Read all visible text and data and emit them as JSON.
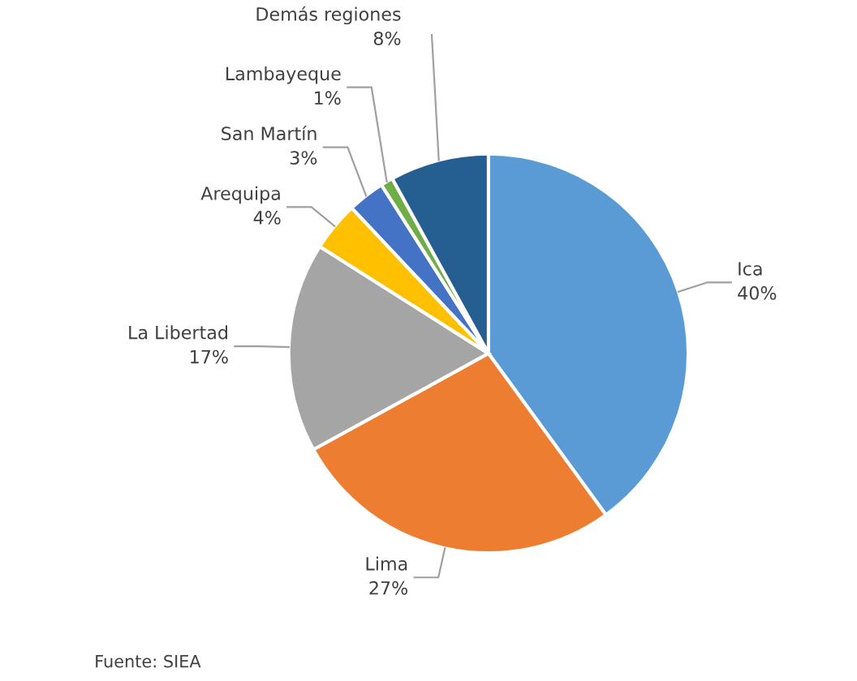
{
  "chart_data": {
    "type": "pie",
    "categories": [
      "Ica",
      "Lima",
      "La Libertad",
      "Arequipa",
      "San Martín",
      "Lambayeque",
      "Demás regiones"
    ],
    "values": [
      40,
      27,
      17,
      4,
      3,
      1,
      8
    ],
    "colors": [
      "#5b9bd5",
      "#ed7d31",
      "#a5a5a5",
      "#ffc000",
      "#4472c4",
      "#70ad47",
      "#255e91"
    ],
    "value_labels": [
      "40%",
      "27%",
      "17%",
      "4%",
      "3%",
      "1%",
      "8%"
    ],
    "legend": false,
    "annotations": [
      "Fuente: SIEA"
    ]
  }
}
